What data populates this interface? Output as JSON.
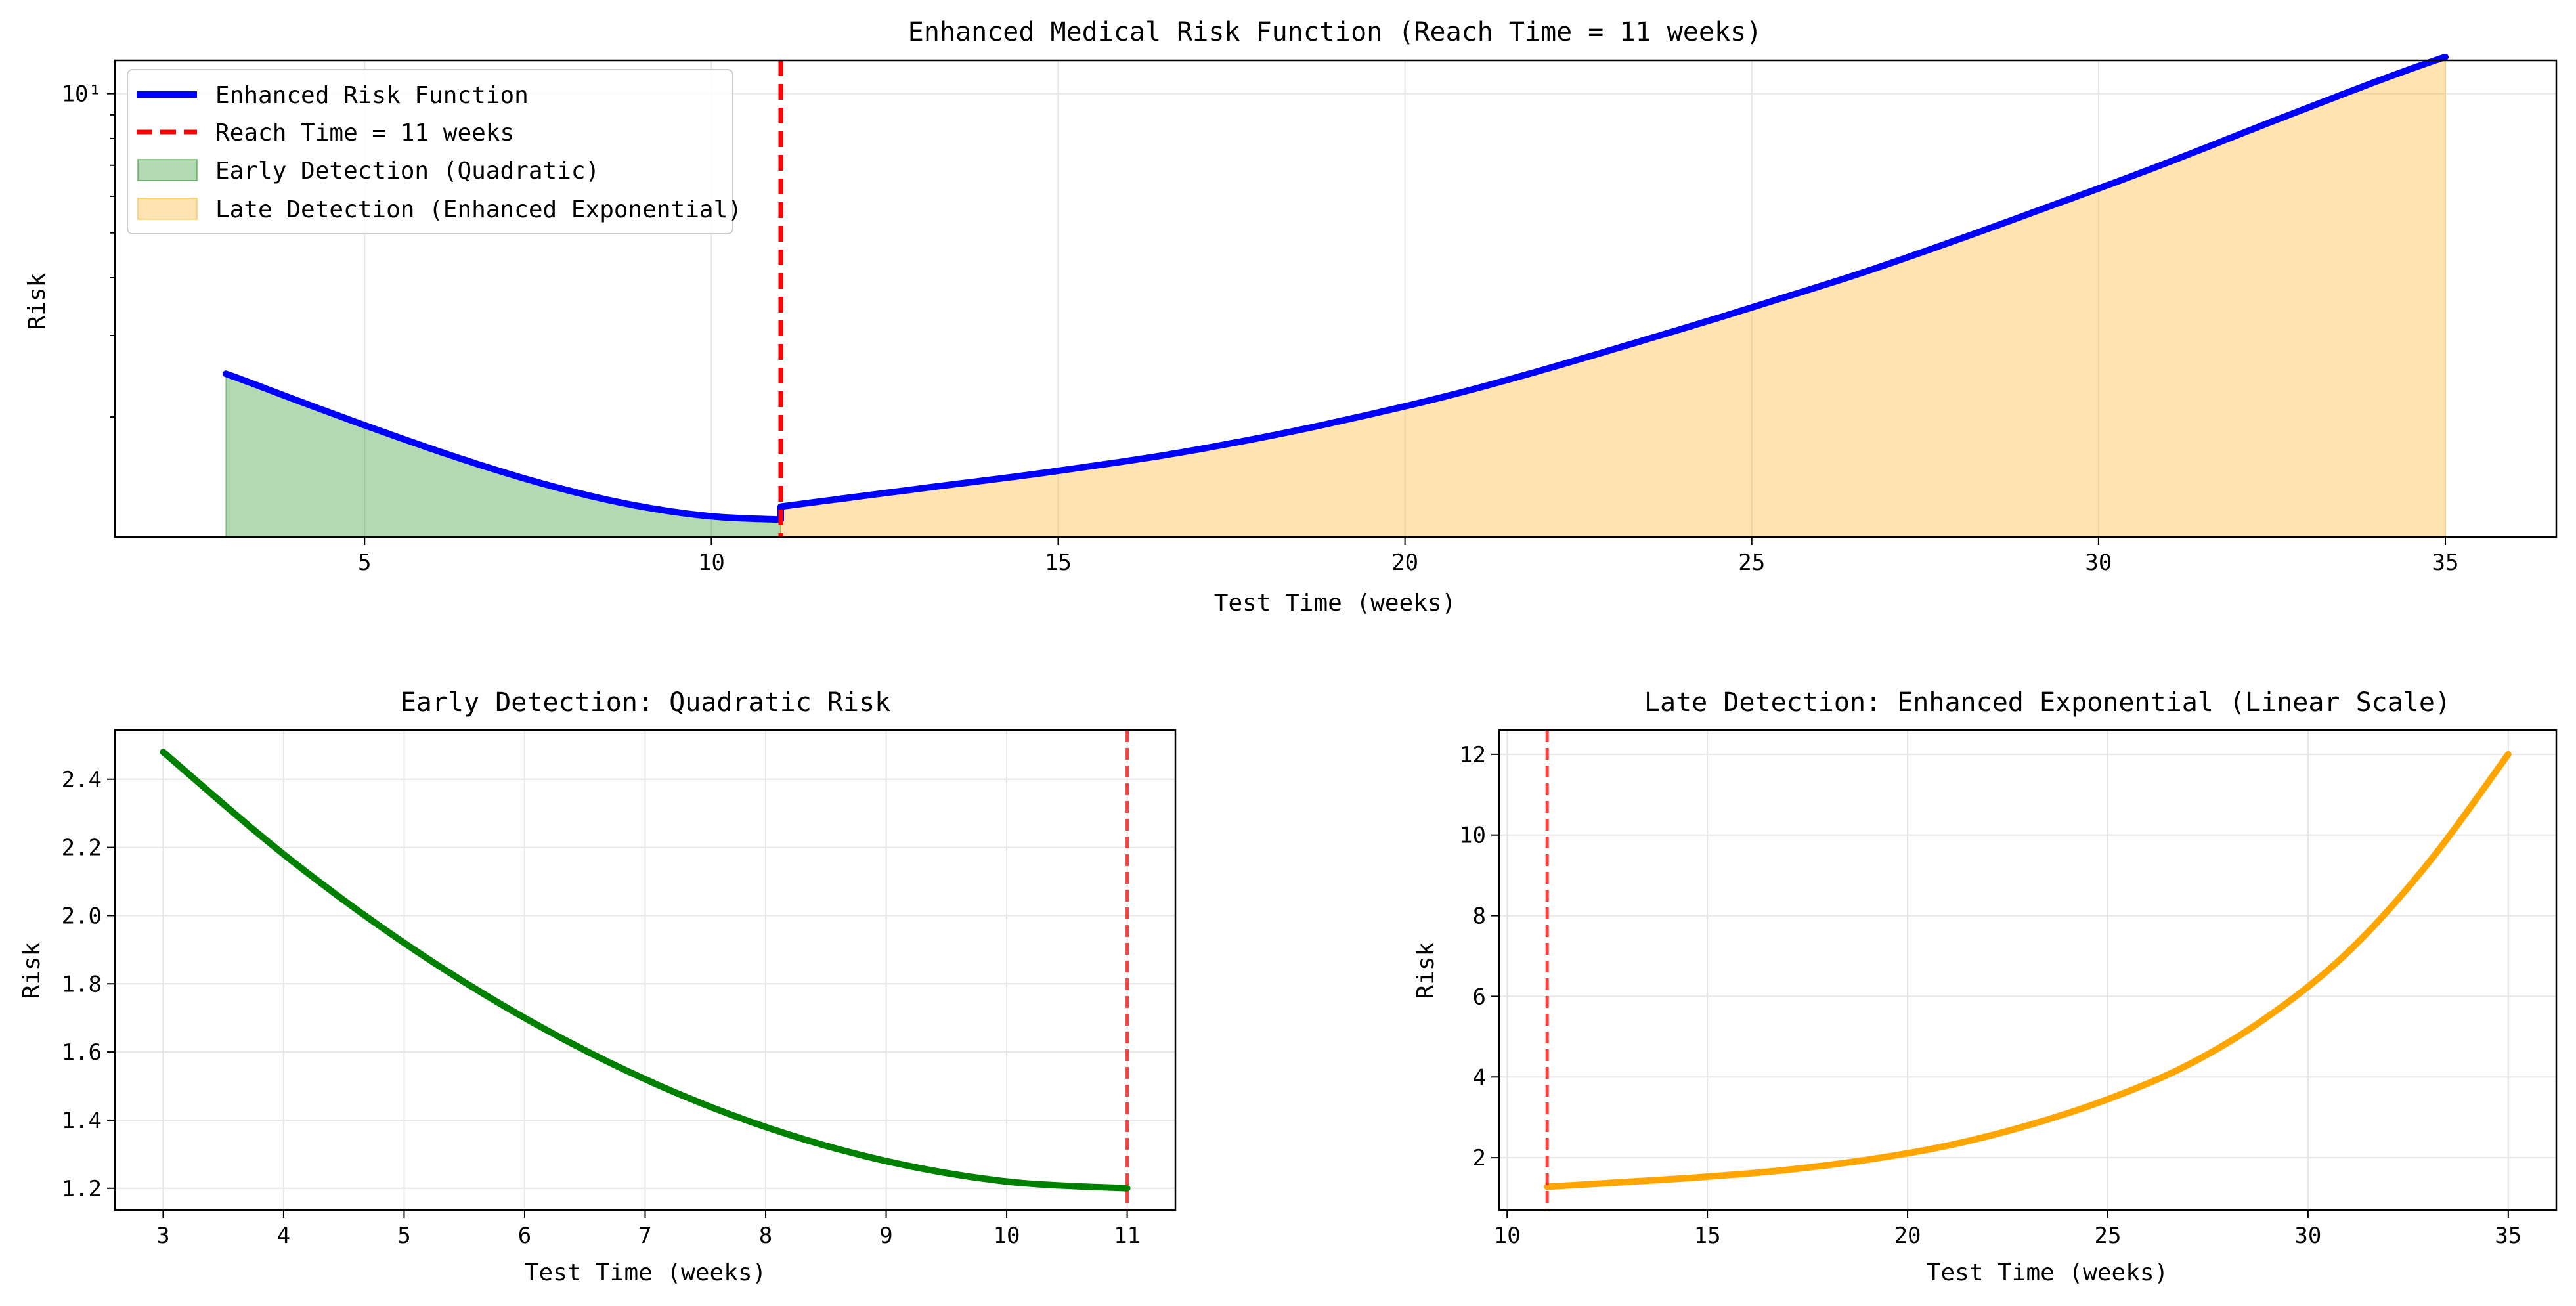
{
  "colors": {
    "main_line": "#0000ff",
    "reach_line": "#ff0000",
    "early_fill": "#008000",
    "late_fill": "#ffa500",
    "early_line": "#008000",
    "late_line": "#ffa500",
    "grid": "#e6e6e6"
  },
  "chart_data": [
    {
      "id": "top",
      "type": "line",
      "title": "Enhanced Medical Risk Function (Reach Time = 11 weeks)",
      "xlabel": "Test Time (weeks)",
      "ylabel": "Risk",
      "yscale": "log",
      "xlim": [
        1.4,
        36.6
      ],
      "ylim": [
        1.1,
        11.8
      ],
      "xticks": [
        5,
        10,
        15,
        20,
        25,
        30,
        35
      ],
      "yticks_major": [
        10
      ],
      "yticks_major_labels": [
        "10¹"
      ],
      "yticks_minor": [
        2,
        3,
        4,
        5,
        6,
        7,
        8,
        9
      ],
      "grid": true,
      "legend_position": "upper-left",
      "legend": [
        "Enhanced Risk Function",
        "Reach Time = 11 weeks",
        "Early Detection (Quadratic)",
        "Late Detection (Enhanced Exponential)"
      ],
      "reach_time": 11,
      "series": [
        {
          "kind": "early",
          "x": [
            3,
            4,
            5,
            6,
            7,
            8,
            9,
            10,
            11
          ],
          "y": [
            2.48,
            2.18,
            1.92,
            1.7,
            1.52,
            1.38,
            1.28,
            1.22,
            1.2
          ]
        },
        {
          "kind": "late",
          "x": [
            11,
            13,
            15,
            17,
            19,
            21,
            23,
            25,
            27,
            29,
            31,
            33,
            35
          ],
          "y": [
            1.28,
            1.4,
            1.53,
            1.7,
            1.95,
            2.3,
            2.8,
            3.45,
            4.3,
            5.5,
            7.1,
            9.3,
            12.0
          ]
        }
      ]
    },
    {
      "id": "bottom-left",
      "type": "line",
      "title": "Early Detection: Quadratic Risk",
      "xlabel": "Test Time (weeks)",
      "ylabel": "Risk",
      "xlim": [
        2.6,
        11.4
      ],
      "ylim": [
        1.136,
        2.544
      ],
      "xticks": [
        3,
        4,
        5,
        6,
        7,
        8,
        9,
        10,
        11
      ],
      "yticks": [
        1.2,
        1.4,
        1.6,
        1.8,
        2.0,
        2.2,
        2.4
      ],
      "ytick_labels": [
        "1.2",
        "1.4",
        "1.6",
        "1.8",
        "2.0",
        "2.2",
        "2.4"
      ],
      "grid": true,
      "reach_time": 11,
      "series": [
        {
          "x": [
            3,
            4,
            5,
            6,
            7,
            8,
            9,
            10,
            11
          ],
          "y": [
            2.48,
            2.18,
            1.92,
            1.7,
            1.52,
            1.38,
            1.28,
            1.22,
            1.2
          ]
        }
      ]
    },
    {
      "id": "bottom-right",
      "type": "line",
      "title": "Late Detection: Enhanced Exponential (Linear Scale)",
      "xlabel": "Test Time (weeks)",
      "ylabel": "Risk",
      "xlim": [
        9.8,
        36.2
      ],
      "ylim": [
        0.7,
        12.6
      ],
      "xticks": [
        10,
        15,
        20,
        25,
        30,
        35
      ],
      "yticks": [
        2,
        4,
        6,
        8,
        10,
        12
      ],
      "ytick_labels": [
        "2",
        "4",
        "6",
        "8",
        "10",
        "12"
      ],
      "grid": true,
      "reach_time": 11,
      "series": [
        {
          "x": [
            11,
            13,
            15,
            17,
            19,
            21,
            23,
            25,
            27,
            29,
            31,
            33,
            35
          ],
          "y": [
            1.28,
            1.4,
            1.53,
            1.7,
            1.95,
            2.3,
            2.8,
            3.45,
            4.3,
            5.5,
            7.1,
            9.3,
            12.0
          ]
        }
      ]
    }
  ]
}
